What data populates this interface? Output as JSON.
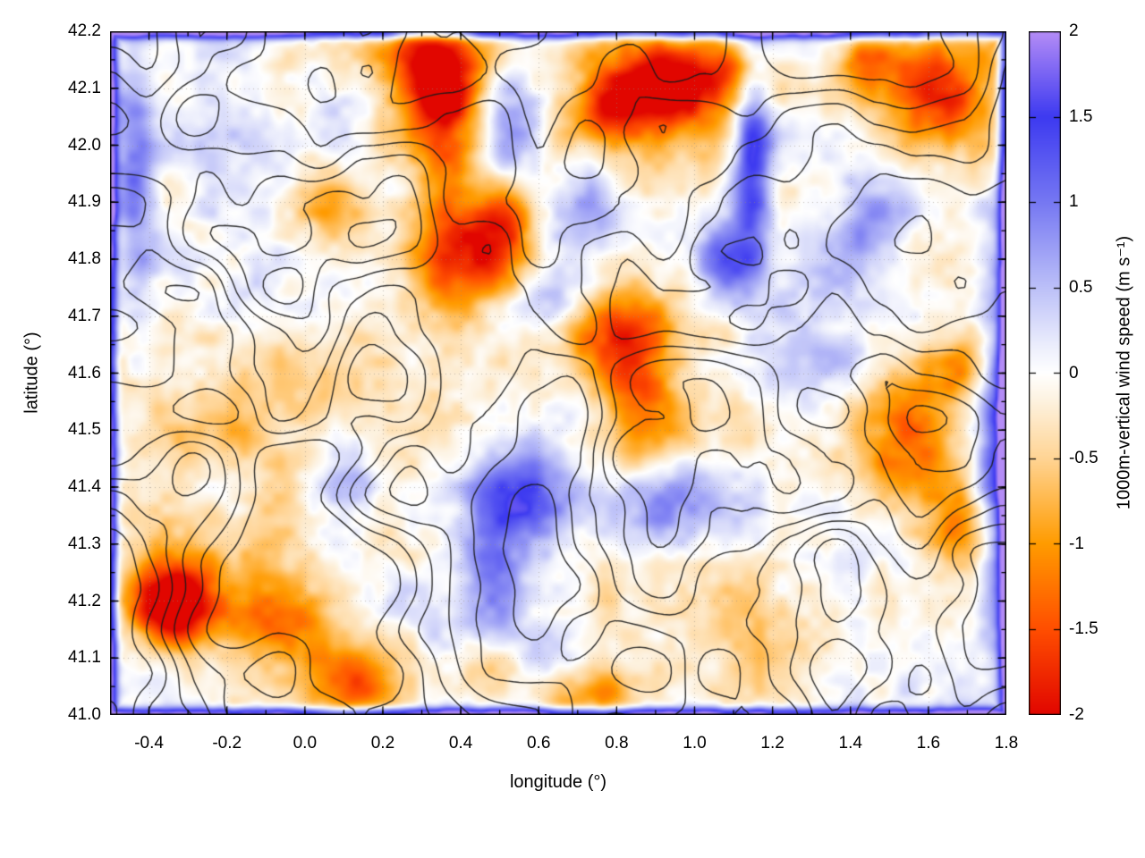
{
  "chart_data": {
    "type": "heatmap",
    "title": "",
    "xlabel": "longitude (°)",
    "ylabel": "latitude (°)",
    "xlim": [
      -0.5,
      1.8
    ],
    "ylim": [
      41.0,
      42.2
    ],
    "grid": true,
    "x_ticks": [
      -0.4,
      -0.2,
      0.0,
      0.2,
      0.4,
      0.6,
      0.8,
      1.0,
      1.2,
      1.4,
      1.6,
      1.8
    ],
    "x_tick_labels": [
      "-0.4",
      "-0.2",
      "0.0",
      "0.2",
      "0.4",
      "0.6",
      "0.8",
      "1.0",
      "1.2",
      "1.4",
      "1.6",
      "1.8"
    ],
    "y_ticks": [
      41.0,
      41.1,
      41.2,
      41.3,
      41.4,
      41.5,
      41.6,
      41.7,
      41.8,
      41.9,
      42.0,
      42.1,
      42.2
    ],
    "y_tick_labels": [
      "41.0",
      "41.1",
      "41.2",
      "41.3",
      "41.4",
      "41.5",
      "41.6",
      "41.7",
      "41.8",
      "41.9",
      "42.0",
      "42.1",
      "42.2"
    ],
    "colorbar": {
      "label": "1000m-vertical wind speed (m s⁻¹)",
      "range": [
        -2,
        2
      ],
      "ticks": [
        2,
        1.5,
        1,
        0.5,
        0,
        -0.5,
        -1,
        -1.5,
        -2
      ],
      "tick_labels": [
        "2",
        "1.5",
        "1",
        "0.5",
        "0",
        "-0.5",
        "-1",
        "-1.5",
        "-2"
      ],
      "stops": [
        {
          "value": -2.0,
          "color": "#e10600"
        },
        {
          "value": -1.5,
          "color": "#ff4e00"
        },
        {
          "value": -1.0,
          "color": "#ff9b00"
        },
        {
          "value": -0.5,
          "color": "#ffd494"
        },
        {
          "value": -0.15,
          "color": "#fdf3e2"
        },
        {
          "value": 0.0,
          "color": "#ffffff"
        },
        {
          "value": 0.15,
          "color": "#edeffc"
        },
        {
          "value": 0.5,
          "color": "#bcc0f8"
        },
        {
          "value": 1.0,
          "color": "#7678f2"
        },
        {
          "value": 1.5,
          "color": "#3d3af0"
        },
        {
          "value": 2.0,
          "color": "#b48cf6"
        }
      ]
    },
    "hotspot_fields": [
      "lon",
      "lat",
      "sigma_lon",
      "sigma_lat",
      "amplitude_m_per_s"
    ],
    "hotspots": [
      [
        0.33,
        42.13,
        0.09,
        0.07,
        -1.9
      ],
      [
        0.36,
        41.97,
        0.06,
        0.13,
        -1.1
      ],
      [
        0.44,
        41.81,
        0.1,
        0.07,
        -1.5
      ],
      [
        0.52,
        41.87,
        0.05,
        0.05,
        -0.9
      ],
      [
        0.95,
        42.11,
        0.1,
        0.06,
        -2.1
      ],
      [
        0.78,
        42.07,
        0.07,
        0.05,
        -1.4
      ],
      [
        1.1,
        42.13,
        0.05,
        0.04,
        -0.9
      ],
      [
        1.62,
        42.09,
        0.11,
        0.07,
        -1.7
      ],
      [
        1.45,
        42.15,
        0.05,
        0.04,
        -1.0
      ],
      [
        0.86,
        41.56,
        0.08,
        0.1,
        -1.7
      ],
      [
        0.78,
        41.68,
        0.09,
        0.05,
        -1.2
      ],
      [
        -0.34,
        41.19,
        0.07,
        0.05,
        -2.1
      ],
      [
        -0.2,
        41.26,
        0.22,
        0.1,
        -0.8
      ],
      [
        -0.05,
        41.15,
        0.1,
        0.05,
        -1.0
      ],
      [
        0.12,
        41.05,
        0.09,
        0.05,
        -1.3
      ],
      [
        0.45,
        41.07,
        0.07,
        0.04,
        -0.9
      ],
      [
        0.75,
        41.03,
        0.09,
        0.04,
        -1.1
      ],
      [
        1.55,
        41.5,
        0.09,
        0.09,
        -1.4
      ],
      [
        1.68,
        41.33,
        0.07,
        0.07,
        -1.1
      ],
      [
        1.72,
        41.62,
        0.05,
        0.05,
        -0.9
      ],
      [
        0.05,
        41.9,
        0.06,
        0.05,
        -0.8
      ],
      [
        1.3,
        41.13,
        0.2,
        0.08,
        -0.5
      ],
      [
        1.15,
        41.98,
        0.035,
        0.13,
        1.7
      ],
      [
        1.08,
        41.8,
        0.05,
        0.07,
        1.1
      ],
      [
        0.55,
        41.38,
        0.07,
        0.07,
        1.2
      ],
      [
        0.47,
        41.28,
        0.05,
        0.09,
        1.0
      ],
      [
        0.9,
        41.37,
        0.14,
        0.045,
        1.0
      ],
      [
        1.78,
        41.45,
        0.04,
        0.22,
        1.3
      ],
      [
        0.52,
        42.04,
        0.05,
        0.06,
        1.0
      ],
      [
        -0.44,
        41.9,
        0.04,
        0.18,
        1.1
      ],
      [
        0.62,
        41.73,
        0.08,
        0.04,
        0.8
      ],
      [
        0.1,
        41.45,
        0.06,
        0.06,
        0.7
      ],
      [
        1.3,
        41.65,
        0.1,
        0.1,
        0.6
      ],
      [
        0.75,
        41.9,
        0.06,
        0.06,
        0.9
      ],
      [
        1.45,
        41.85,
        0.07,
        0.07,
        0.7
      ]
    ],
    "domain_boundary_value": 2.0,
    "contour_levels": [
      -0.5,
      -0.35,
      -0.2,
      -0.05,
      0.1,
      0.25,
      0.4
    ]
  }
}
